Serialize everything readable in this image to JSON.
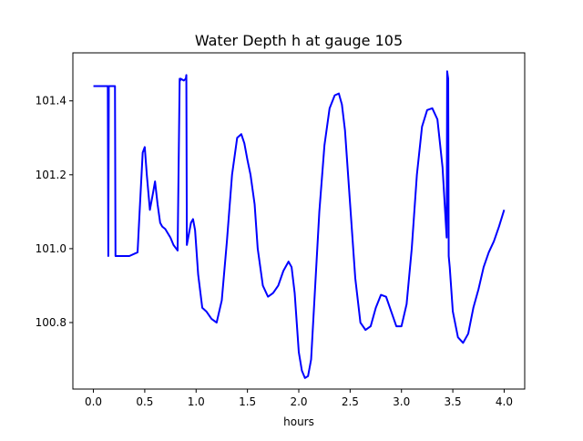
{
  "chart_data": {
    "type": "line",
    "title": "Water Depth h at gauge 105",
    "xlabel": "hours",
    "ylabel": "",
    "xlim": [
      -0.2,
      4.2
    ],
    "ylim": [
      100.62,
      101.53
    ],
    "xticks": [
      0.0,
      0.5,
      1.0,
      1.5,
      2.0,
      2.5,
      3.0,
      3.5,
      4.0
    ],
    "xtick_labels": [
      "0.0",
      "0.5",
      "1.0",
      "1.5",
      "2.0",
      "2.5",
      "3.0",
      "3.5",
      "4.0"
    ],
    "yticks": [
      100.8,
      101.0,
      101.2,
      101.4
    ],
    "ytick_labels": [
      "100.8",
      "101.0",
      "101.2",
      "101.4"
    ],
    "grid": false,
    "legend": "none",
    "series": [
      {
        "color": "#0000ff",
        "x": [
          0.0,
          0.05,
          0.1,
          0.14,
          0.145,
          0.15,
          0.155,
          0.16,
          0.18,
          0.21,
          0.215,
          0.22,
          0.3,
          0.35,
          0.43,
          0.45,
          0.48,
          0.5,
          0.52,
          0.55,
          0.58,
          0.6,
          0.625,
          0.65,
          0.67,
          0.7,
          0.75,
          0.78,
          0.82,
          0.84,
          0.845,
          0.85,
          0.88,
          0.9,
          0.905,
          0.91,
          0.93,
          0.95,
          0.97,
          0.99,
          1.02,
          1.06,
          1.1,
          1.15,
          1.2,
          1.25,
          1.3,
          1.35,
          1.4,
          1.44,
          1.47,
          1.5,
          1.53,
          1.57,
          1.6,
          1.65,
          1.7,
          1.75,
          1.8,
          1.85,
          1.9,
          1.93,
          1.96,
          1.98,
          2.0,
          2.03,
          2.06,
          2.09,
          2.12,
          2.15,
          2.2,
          2.25,
          2.3,
          2.35,
          2.39,
          2.42,
          2.45,
          2.5,
          2.55,
          2.6,
          2.65,
          2.7,
          2.75,
          2.8,
          2.85,
          2.9,
          2.95,
          3.0,
          3.05,
          3.1,
          3.15,
          3.2,
          3.25,
          3.3,
          3.35,
          3.4,
          3.44,
          3.445,
          3.45,
          3.455,
          3.46,
          3.47,
          3.5,
          3.55,
          3.6,
          3.65,
          3.7,
          3.75,
          3.8,
          3.85,
          3.9,
          3.95,
          4.0
        ],
        "y": [
          101.44,
          101.44,
          101.44,
          101.44,
          100.98,
          101.44,
          101.44,
          101.44,
          101.44,
          101.44,
          100.98,
          100.98,
          100.98,
          100.98,
          100.99,
          101.1,
          101.26,
          101.275,
          101.2,
          101.105,
          101.15,
          101.182,
          101.12,
          101.07,
          101.06,
          101.053,
          101.03,
          101.01,
          100.995,
          101.46,
          101.455,
          101.46,
          101.455,
          101.46,
          101.47,
          101.01,
          101.04,
          101.07,
          101.08,
          101.05,
          100.93,
          100.84,
          100.83,
          100.81,
          100.8,
          100.86,
          101.02,
          101.2,
          101.3,
          101.31,
          101.285,
          101.24,
          101.2,
          101.12,
          101.0,
          100.9,
          100.87,
          100.88,
          100.9,
          100.94,
          100.965,
          100.95,
          100.88,
          100.8,
          100.72,
          100.67,
          100.65,
          100.655,
          100.7,
          100.85,
          101.1,
          101.28,
          101.38,
          101.415,
          101.42,
          101.39,
          101.32,
          101.12,
          100.92,
          100.8,
          100.78,
          100.79,
          100.84,
          100.875,
          100.87,
          100.83,
          100.79,
          100.79,
          100.85,
          101.0,
          101.2,
          101.33,
          101.375,
          101.38,
          101.35,
          101.22,
          101.03,
          101.48,
          101.47,
          101.46,
          100.98,
          100.95,
          100.83,
          100.76,
          100.745,
          100.77,
          100.84,
          100.89,
          100.95,
          100.99,
          101.02,
          101.06,
          101.105
        ]
      }
    ]
  }
}
